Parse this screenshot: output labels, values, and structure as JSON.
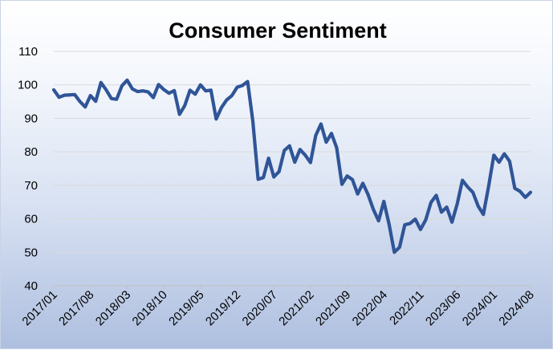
{
  "chart_data": {
    "type": "line",
    "title": "Consumer Sentiment",
    "xlabel": "",
    "ylabel": "",
    "ylim": [
      40,
      110
    ],
    "yticks": [
      40,
      50,
      60,
      70,
      80,
      90,
      100,
      110
    ],
    "grid": true,
    "legend": "none",
    "x_tick_labels": [
      "2017/01",
      "2017/08",
      "2018/03",
      "2018/10",
      "2019/05",
      "2019/12",
      "2020/07",
      "2021/02",
      "2021/09",
      "2022/04",
      "2022/11",
      "2023/06",
      "2024/01",
      "2024/08"
    ],
    "series": [
      {
        "name": "Consumer Sentiment",
        "color": "#2f5597",
        "x": [
          "2017/01",
          "2017/02",
          "2017/03",
          "2017/04",
          "2017/05",
          "2017/06",
          "2017/07",
          "2017/08",
          "2017/09",
          "2017/10",
          "2017/11",
          "2017/12",
          "2018/01",
          "2018/02",
          "2018/03",
          "2018/04",
          "2018/05",
          "2018/06",
          "2018/07",
          "2018/08",
          "2018/09",
          "2018/10",
          "2018/11",
          "2018/12",
          "2019/01",
          "2019/02",
          "2019/03",
          "2019/04",
          "2019/05",
          "2019/06",
          "2019/07",
          "2019/08",
          "2019/09",
          "2019/10",
          "2019/11",
          "2019/12",
          "2020/01",
          "2020/02",
          "2020/03",
          "2020/04",
          "2020/05",
          "2020/06",
          "2020/07",
          "2020/08",
          "2020/09",
          "2020/10",
          "2020/11",
          "2020/12",
          "2021/01",
          "2021/02",
          "2021/03",
          "2021/04",
          "2021/05",
          "2021/06",
          "2021/07",
          "2021/08",
          "2021/09",
          "2021/10",
          "2021/11",
          "2021/12",
          "2022/01",
          "2022/02",
          "2022/03",
          "2022/04",
          "2022/05",
          "2022/06",
          "2022/07",
          "2022/08",
          "2022/09",
          "2022/10",
          "2022/11",
          "2022/12",
          "2023/01",
          "2023/02",
          "2023/03",
          "2023/04",
          "2023/05",
          "2023/06",
          "2023/07",
          "2023/08",
          "2023/09",
          "2023/10",
          "2023/11",
          "2023/12",
          "2024/01",
          "2024/02",
          "2024/03",
          "2024/04",
          "2024/05",
          "2024/06",
          "2024/07",
          "2024/08"
        ],
        "values": [
          98.5,
          96.3,
          96.9,
          97.0,
          97.1,
          95.0,
          93.4,
          96.8,
          95.1,
          100.7,
          98.5,
          95.9,
          95.7,
          99.7,
          101.4,
          98.8,
          98.0,
          98.2,
          97.9,
          96.2,
          100.1,
          98.6,
          97.5,
          98.3,
          91.2,
          93.8,
          98.4,
          97.2,
          100.0,
          98.2,
          98.4,
          89.8,
          93.2,
          95.5,
          96.8,
          99.3,
          99.8,
          101.0,
          89.1,
          71.8,
          72.3,
          78.1,
          72.5,
          74.1,
          80.4,
          81.8,
          76.9,
          80.7,
          79.0,
          76.8,
          84.9,
          88.3,
          82.9,
          85.5,
          81.2,
          70.3,
          72.8,
          71.7,
          67.4,
          70.6,
          67.2,
          62.8,
          59.4,
          65.2,
          58.4,
          50.0,
          51.5,
          58.2,
          58.6,
          59.9,
          56.8,
          59.7,
          64.9,
          67.0,
          62.0,
          63.5,
          59.0,
          64.4,
          71.5,
          69.5,
          67.9,
          63.8,
          61.3,
          69.7,
          79.0,
          76.9,
          79.4,
          77.2,
          69.1,
          68.2,
          66.4,
          67.9
        ]
      }
    ]
  }
}
